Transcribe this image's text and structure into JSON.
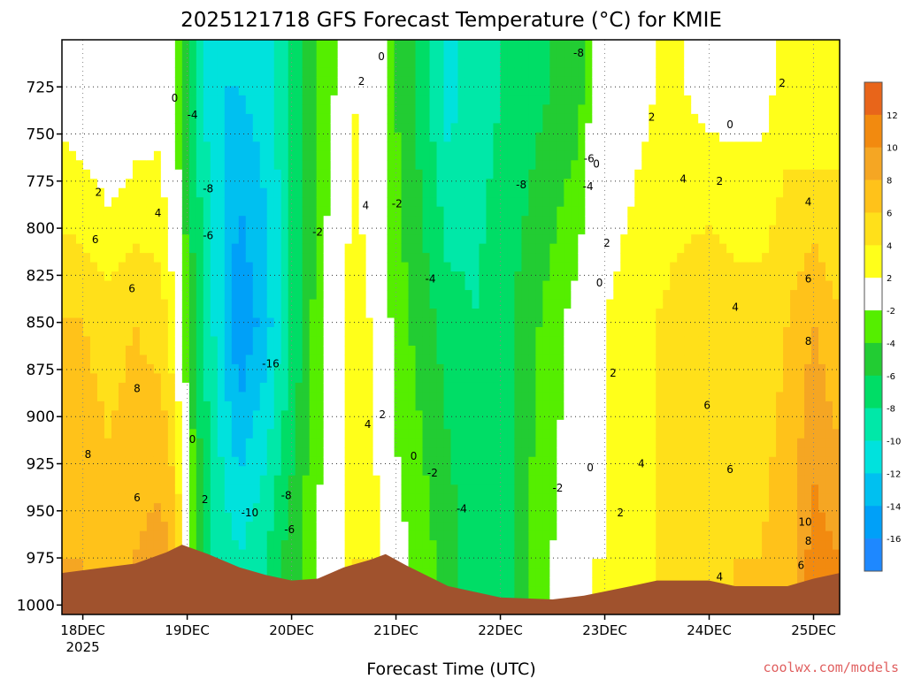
{
  "chart_data": {
    "type": "heatmap",
    "title": "2025121718 GFS Forecast Temperature (°C) for KMIE",
    "xlabel": "Forecast Time (UTC)",
    "ylabel": "",
    "x_range": [
      -0.2,
      7.25
    ],
    "y_range": [
      700,
      1005
    ],
    "y_ticks": [
      725,
      750,
      775,
      800,
      825,
      850,
      875,
      900,
      925,
      950,
      975,
      1000
    ],
    "x_ticks": [
      {
        "value": 0,
        "label": "18DEC",
        "sublabel": "2025"
      },
      {
        "value": 1,
        "label": "19DEC"
      },
      {
        "value": 2,
        "label": "20DEC"
      },
      {
        "value": 3,
        "label": "21DEC"
      },
      {
        "value": 4,
        "label": "22DEC"
      },
      {
        "value": 5,
        "label": "23DEC"
      },
      {
        "value": 6,
        "label": "24DEC"
      },
      {
        "value": 7,
        "label": "25DEC"
      }
    ],
    "colorbar": {
      "labels": [
        "12",
        "10",
        "8",
        "6",
        "4",
        "2",
        "-2",
        "-4",
        "-6",
        "-8",
        "-10",
        "-12",
        "-14",
        "-16"
      ],
      "colors": [
        "#e8651a",
        "#f28a0f",
        "#f5a623",
        "#ffc21a",
        "#ffe01a",
        "#ffff1a",
        "#ffffff",
        "#55ee00",
        "#22cc33",
        "#00dd66",
        "#00e8a8",
        "#00e2dd",
        "#00c0f0",
        "#00a0f8",
        "#1e88ff"
      ]
    },
    "time_columns": [
      -0.2,
      0,
      0.25,
      0.5,
      0.75,
      0.85,
      0.95,
      1.0,
      1.1,
      1.25,
      1.5,
      1.75,
      2.0,
      2.25,
      2.5,
      2.6,
      2.75,
      2.9,
      3.0,
      3.25,
      3.5,
      3.75,
      4.0,
      4.25,
      4.5,
      4.75,
      4.9,
      5.0,
      5.25,
      5.5,
      5.75,
      6.0,
      6.25,
      6.5,
      6.75,
      7.0,
      7.25
    ],
    "temperature_profiles": [
      {
        "t": -0.2,
        "temps": [
          1,
          6,
          8
        ]
      },
      {
        "t": 0,
        "temps": [
          0,
          6,
          8
        ]
      },
      {
        "t": 0.25,
        "temps": [
          -1,
          5,
          7
        ]
      },
      {
        "t": 0.5,
        "temps": [
          0,
          6,
          8
        ]
      },
      {
        "t": 0.75,
        "temps": [
          1,
          5,
          9
        ]
      },
      {
        "t": 0.85,
        "temps": [
          -2,
          3,
          8
        ]
      },
      {
        "t": 0.95,
        "temps": [
          -4,
          -1,
          4
        ]
      },
      {
        "t": 1.0,
        "temps": [
          -6,
          -4,
          0
        ]
      },
      {
        "t": 1.1,
        "temps": [
          -8,
          -7,
          -4
        ]
      },
      {
        "t": 1.25,
        "temps": [
          -12,
          -10,
          -8
        ]
      },
      {
        "t": 1.5,
        "temps": [
          -12,
          -16,
          -10
        ]
      },
      {
        "t": 1.75,
        "temps": [
          -11,
          -13,
          -8
        ]
      },
      {
        "t": 2.0,
        "temps": [
          -8,
          -8,
          -5
        ]
      },
      {
        "t": 2.25,
        "temps": [
          -4,
          -3,
          -2
        ]
      },
      {
        "t": 2.5,
        "temps": [
          -1,
          2,
          1
        ]
      },
      {
        "t": 2.6,
        "temps": [
          2,
          4,
          4
        ]
      },
      {
        "t": 2.75,
        "temps": [
          -1,
          2,
          4
        ]
      },
      {
        "t": 2.9,
        "temps": [
          -2,
          -1,
          1
        ]
      },
      {
        "t": 3.0,
        "temps": [
          -4,
          -3,
          -1
        ]
      },
      {
        "t": 3.25,
        "temps": [
          -7,
          -5,
          -3
        ]
      },
      {
        "t": 3.5,
        "temps": [
          -11,
          -7,
          -5
        ]
      },
      {
        "t": 3.75,
        "temps": [
          -9,
          -8,
          -7
        ]
      },
      {
        "t": 4.0,
        "temps": [
          -8,
          -7,
          -8
        ]
      },
      {
        "t": 4.25,
        "temps": [
          -7,
          -5,
          -4
        ]
      },
      {
        "t": 4.5,
        "temps": [
          -6,
          -3,
          -2
        ]
      },
      {
        "t": 4.75,
        "temps": [
          -5,
          -1,
          0
        ]
      },
      {
        "t": 4.9,
        "temps": [
          -1,
          1,
          2
        ]
      },
      {
        "t": 5.0,
        "temps": [
          0,
          2,
          2
        ]
      },
      {
        "t": 5.25,
        "temps": [
          1,
          3,
          3
        ]
      },
      {
        "t": 5.5,
        "temps": [
          2,
          4,
          4
        ]
      },
      {
        "t": 5.75,
        "temps": [
          2,
          5,
          4
        ]
      },
      {
        "t": 6.0,
        "temps": [
          1,
          6,
          5
        ]
      },
      {
        "t": 6.25,
        "temps": [
          1,
          5,
          6
        ]
      },
      {
        "t": 6.5,
        "temps": [
          1,
          5,
          6
        ]
      },
      {
        "t": 6.75,
        "temps": [
          3,
          6,
          7
        ]
      },
      {
        "t": 7.0,
        "temps": [
          2,
          8,
          11
        ]
      },
      {
        "t": 7.25,
        "temps": [
          3,
          6,
          10
        ]
      }
    ],
    "profile_levels": [
      725,
      850,
      975
    ],
    "ground_surface": [
      {
        "t": -0.2,
        "p": 983
      },
      {
        "t": 0.5,
        "p": 978
      },
      {
        "t": 0.8,
        "p": 972
      },
      {
        "t": 0.95,
        "p": 968
      },
      {
        "t": 1.2,
        "p": 973
      },
      {
        "t": 1.5,
        "p": 980
      },
      {
        "t": 1.75,
        "p": 984
      },
      {
        "t": 2.0,
        "p": 987
      },
      {
        "t": 2.25,
        "p": 986
      },
      {
        "t": 2.5,
        "p": 980
      },
      {
        "t": 2.75,
        "p": 976
      },
      {
        "t": 2.9,
        "p": 973
      },
      {
        "t": 3.1,
        "p": 979
      },
      {
        "t": 3.5,
        "p": 990
      },
      {
        "t": 4.0,
        "p": 996
      },
      {
        "t": 4.5,
        "p": 997
      },
      {
        "t": 4.8,
        "p": 995
      },
      {
        "t": 5.25,
        "p": 990
      },
      {
        "t": 5.5,
        "p": 987
      },
      {
        "t": 6.0,
        "p": 987
      },
      {
        "t": 6.25,
        "p": 990
      },
      {
        "t": 6.75,
        "p": 990
      },
      {
        "t": 7.0,
        "p": 986
      },
      {
        "t": 7.25,
        "p": 983
      }
    ],
    "contour_labels": [
      {
        "t": 0.88,
        "p": 731,
        "text": "0"
      },
      {
        "t": 1.05,
        "p": 740,
        "text": "-4"
      },
      {
        "t": 1.2,
        "p": 779,
        "text": "-8"
      },
      {
        "t": 1.2,
        "p": 804,
        "text": "-6"
      },
      {
        "t": 0.15,
        "p": 781,
        "text": "2"
      },
      {
        "t": 0.72,
        "p": 792,
        "text": "4"
      },
      {
        "t": 0.12,
        "p": 806,
        "text": "6"
      },
      {
        "t": 0.47,
        "p": 832,
        "text": "6"
      },
      {
        "t": 0.52,
        "p": 885,
        "text": "8"
      },
      {
        "t": 0.05,
        "p": 920,
        "text": "8"
      },
      {
        "t": 0.52,
        "p": 943,
        "text": "6"
      },
      {
        "t": 1.05,
        "p": 912,
        "text": "0"
      },
      {
        "t": 1.17,
        "p": 944,
        "text": "2"
      },
      {
        "t": 1.8,
        "p": 872,
        "text": "-16"
      },
      {
        "t": 1.95,
        "p": 942,
        "text": "-8"
      },
      {
        "t": 1.6,
        "p": 951,
        "text": "-10"
      },
      {
        "t": 1.98,
        "p": 960,
        "text": "-6"
      },
      {
        "t": 2.25,
        "p": 802,
        "text": "-2"
      },
      {
        "t": 2.67,
        "p": 722,
        "text": "2"
      },
      {
        "t": 2.71,
        "p": 788,
        "text": "4"
      },
      {
        "t": 2.86,
        "p": 709,
        "text": "0"
      },
      {
        "t": 3.01,
        "p": 787,
        "text": "-2"
      },
      {
        "t": 2.73,
        "p": 904,
        "text": "4"
      },
      {
        "t": 2.87,
        "p": 899,
        "text": "2"
      },
      {
        "t": 3.17,
        "p": 921,
        "text": "0"
      },
      {
        "t": 3.35,
        "p": 930,
        "text": "-2"
      },
      {
        "t": 3.33,
        "p": 827,
        "text": "-4"
      },
      {
        "t": 3.63,
        "p": 949,
        "text": "-4"
      },
      {
        "t": 4.2,
        "p": 777,
        "text": "-8"
      },
      {
        "t": 4.75,
        "p": 707,
        "text": "-8"
      },
      {
        "t": 4.85,
        "p": 763,
        "text": "-6"
      },
      {
        "t": 4.84,
        "p": 778,
        "text": "-4"
      },
      {
        "t": 4.55,
        "p": 938,
        "text": "-2"
      },
      {
        "t": 4.92,
        "p": 766,
        "text": "0"
      },
      {
        "t": 5.02,
        "p": 808,
        "text": "2"
      },
      {
        "t": 4.95,
        "p": 829,
        "text": "0"
      },
      {
        "t": 5.08,
        "p": 877,
        "text": "2"
      },
      {
        "t": 4.86,
        "p": 927,
        "text": "0"
      },
      {
        "t": 5.15,
        "p": 951,
        "text": "2"
      },
      {
        "t": 5.35,
        "p": 925,
        "text": "4"
      },
      {
        "t": 5.45,
        "p": 741,
        "text": "2"
      },
      {
        "t": 5.75,
        "p": 774,
        "text": "4"
      },
      {
        "t": 6.1,
        "p": 775,
        "text": "2"
      },
      {
        "t": 6.2,
        "p": 745,
        "text": "0"
      },
      {
        "t": 6.25,
        "p": 842,
        "text": "4"
      },
      {
        "t": 5.98,
        "p": 894,
        "text": "6"
      },
      {
        "t": 6.2,
        "p": 928,
        "text": "6"
      },
      {
        "t": 6.1,
        "p": 985,
        "text": "4"
      },
      {
        "t": 6.7,
        "p": 723,
        "text": "2"
      },
      {
        "t": 6.95,
        "p": 786,
        "text": "4"
      },
      {
        "t": 6.95,
        "p": 827,
        "text": "6"
      },
      {
        "t": 6.95,
        "p": 860,
        "text": "8"
      },
      {
        "t": 6.92,
        "p": 956,
        "text": "10"
      },
      {
        "t": 6.95,
        "p": 966,
        "text": "8"
      },
      {
        "t": 6.88,
        "p": 979,
        "text": "6"
      }
    ]
  },
  "credit": "coolwx.com/models"
}
